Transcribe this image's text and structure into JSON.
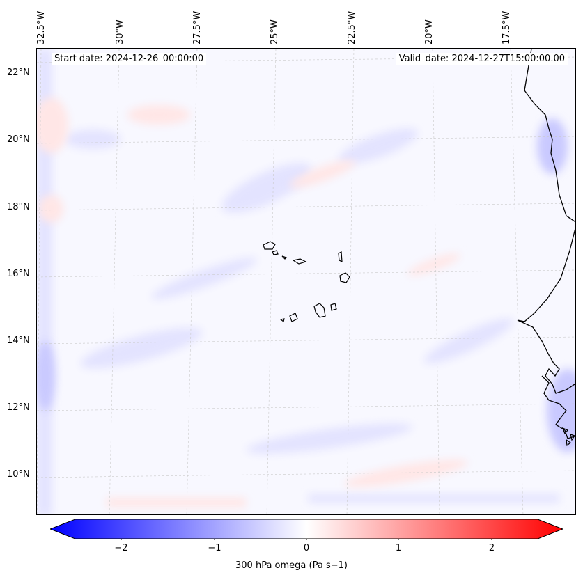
{
  "map": {
    "start_label": "Start date: 2024-12-26_00:00:00",
    "valid_label": "Valid_date: 2024-12-27T15:00:00.00",
    "lon_labels": [
      "32.5°W",
      "30°W",
      "27.5°W",
      "25°W",
      "22.5°W",
      "20°W",
      "17.5°W"
    ],
    "lat_labels": [
      "22°N",
      "20°N",
      "18°N",
      "16°N",
      "14°N",
      "12°N",
      "10°N"
    ],
    "field_colors": {
      "low": "#0000ff",
      "mid": "#ffffff",
      "high": "#ff0000"
    }
  },
  "colorbar": {
    "ticks": [
      "−2",
      "−1",
      "0",
      "1",
      "2"
    ],
    "label": "300 hPa omega (Pa s−1)",
    "range": [
      -2.5,
      2.5
    ]
  }
}
